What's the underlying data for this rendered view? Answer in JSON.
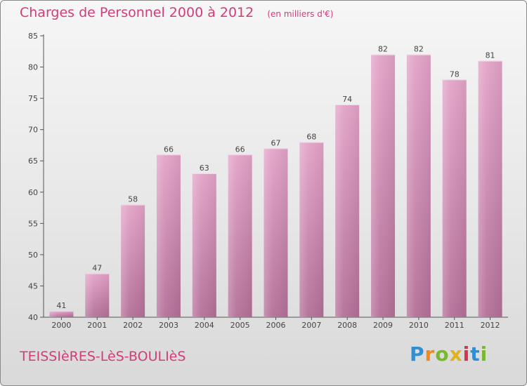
{
  "header": {
    "title": "Charges de Personnel 2000 à 2012",
    "subtitle": "(en milliers d'€)"
  },
  "footer": {
    "commune": "TEISSIèRES-LèS-BOULIèS",
    "logo_text": "Proxiti"
  },
  "colors": {
    "accent": "#d13d7a",
    "bar_top": "#e3a3c8",
    "bar_bottom": "#b46f98",
    "axis": "#555555"
  },
  "chart_data": {
    "type": "bar",
    "categories": [
      "2000",
      "2001",
      "2002",
      "2003",
      "2004",
      "2005",
      "2006",
      "2007",
      "2008",
      "2009",
      "2010",
      "2011",
      "2012"
    ],
    "values": [
      41,
      47,
      58,
      66,
      63,
      66,
      67,
      68,
      74,
      82,
      82,
      78,
      81
    ],
    "ylim": [
      40,
      85
    ],
    "yticks": [
      40,
      45,
      50,
      55,
      60,
      65,
      70,
      75,
      80,
      85
    ],
    "grid": false,
    "data_labels": true
  }
}
